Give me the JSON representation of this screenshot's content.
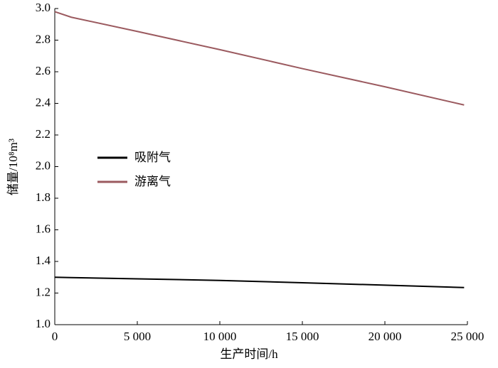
{
  "chart_data": {
    "type": "line",
    "xlabel": "生产时间/h",
    "ylabel": "储量/10⁸m³",
    "x": [
      0,
      1000,
      5000,
      10000,
      15000,
      20000,
      24800
    ],
    "series": [
      {
        "name": "吸附气",
        "color": "#000000",
        "values": [
          1.3,
          1.298,
          1.29,
          1.28,
          1.265,
          1.25,
          1.235
        ]
      },
      {
        "name": "游离气",
        "color": "#9b5a5f",
        "values": [
          2.98,
          2.945,
          2.855,
          2.74,
          2.62,
          2.505,
          2.39
        ]
      }
    ],
    "xlim": [
      0,
      25000
    ],
    "xticks": [
      0,
      {
        "value": 5000,
        "label": "5 000"
      },
      {
        "value": 10000,
        "label": "10 000"
      },
      {
        "value": 15000,
        "label": "15 000"
      },
      {
        "value": 20000,
        "label": "20 000"
      },
      {
        "value": 25000,
        "label": "25 000"
      }
    ],
    "ylim": [
      1.0,
      3.0
    ],
    "yticks": [
      {
        "value": 1.0,
        "label": "1.0"
      },
      1.2,
      1.4,
      1.6,
      1.8,
      {
        "value": 2.0,
        "label": "2.0"
      },
      2.2,
      2.4,
      2.6,
      2.8,
      {
        "value": 3.0,
        "label": "3.0"
      }
    ],
    "legend": "center-left",
    "grid": false
  }
}
